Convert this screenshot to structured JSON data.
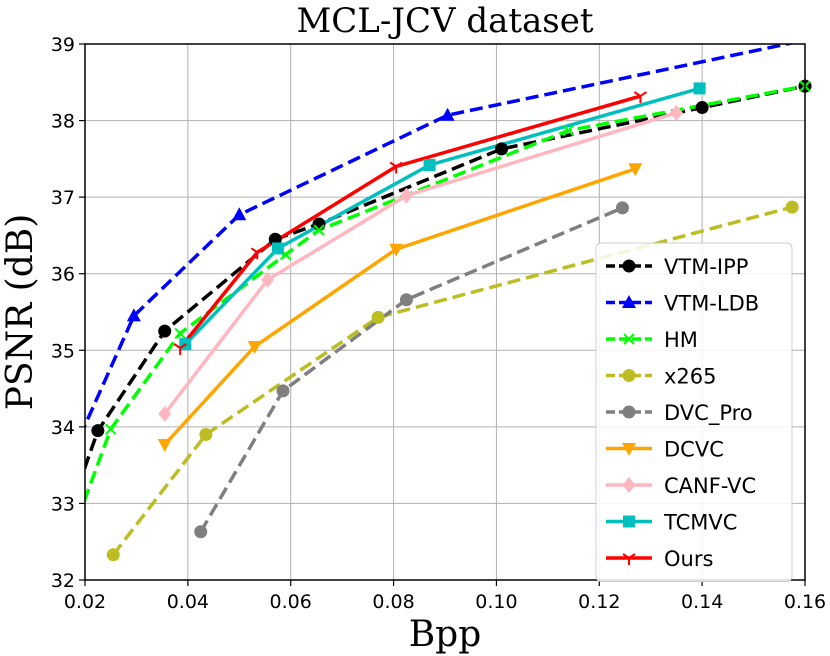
{
  "chart_data": {
    "type": "line",
    "title": "MCL-JCV dataset",
    "xlabel": "Bpp",
    "ylabel": "PSNR (dB)",
    "xlim": [
      0.02,
      0.16
    ],
    "ylim": [
      32,
      39
    ],
    "xticks": [
      "0.02",
      "0.04",
      "0.06",
      "0.08",
      "0.10",
      "0.12",
      "0.14",
      "0.16"
    ],
    "yticks": [
      "32",
      "33",
      "34",
      "35",
      "36",
      "37",
      "38",
      "39"
    ],
    "grid": true,
    "legend_position": "lower-right",
    "series": [
      {
        "name": "VTM-IPP",
        "color": "#000000",
        "dash": "dashed",
        "marker": "circle",
        "x": [
          0.0125,
          0.0225,
          0.0355,
          0.057,
          0.0655,
          0.101,
          0.14,
          0.16
        ],
        "y": [
          32.05,
          33.95,
          35.25,
          36.45,
          36.65,
          37.63,
          38.17,
          38.45
        ]
      },
      {
        "name": "VTM-LDB",
        "color": "#0000ff",
        "dash": "dashed",
        "marker": "triangle",
        "x": [
          0.016,
          0.0295,
          0.05,
          0.0905,
          0.16
        ],
        "y": [
          33.42,
          35.45,
          36.77,
          38.07,
          39.05
        ]
      },
      {
        "name": "HM",
        "color": "#00ff00",
        "dash": "dashed",
        "marker": "x",
        "x": [
          0.016,
          0.025,
          0.0385,
          0.059,
          0.0655,
          0.114,
          0.16
        ],
        "y": [
          32.33,
          33.97,
          35.22,
          36.25,
          36.57,
          37.87,
          38.45
        ]
      },
      {
        "name": "x265",
        "color": "#bcbd22",
        "dash": "dashed",
        "marker": "circle",
        "x": [
          0.0255,
          0.0435,
          0.077,
          0.1575
        ],
        "y": [
          32.33,
          33.9,
          35.43,
          36.87
        ]
      },
      {
        "name": "DVC_Pro",
        "color": "#7f7f7f",
        "dash": "dashed",
        "marker": "circle",
        "x": [
          0.0425,
          0.0585,
          0.0825,
          0.1245
        ],
        "y": [
          32.63,
          34.47,
          35.66,
          36.86
        ]
      },
      {
        "name": "DCVC",
        "color": "#ffa500",
        "dash": "solid",
        "marker": "triangle-down",
        "x": [
          0.0355,
          0.053,
          0.0805,
          0.127
        ],
        "y": [
          33.77,
          35.05,
          36.32,
          37.37
        ]
      },
      {
        "name": "CANF-VC",
        "color": "#ffb6c1",
        "dash": "solid",
        "marker": "diamond",
        "x": [
          0.0355,
          0.0555,
          0.0825,
          0.135
        ],
        "y": [
          34.17,
          35.92,
          37.02,
          38.1
        ]
      },
      {
        "name": "TCMVC",
        "color": "#00bfbf",
        "dash": "solid",
        "marker": "square",
        "x": [
          0.0395,
          0.0575,
          0.087,
          0.1395
        ],
        "y": [
          35.08,
          36.33,
          37.42,
          38.42
        ]
      },
      {
        "name": "Ours",
        "color": "#ff0000",
        "dash": "solid",
        "marker": "tri-down",
        "x": [
          0.0385,
          0.0535,
          0.0805,
          0.128
        ],
        "y": [
          35.03,
          36.28,
          37.4,
          38.32
        ]
      }
    ]
  }
}
